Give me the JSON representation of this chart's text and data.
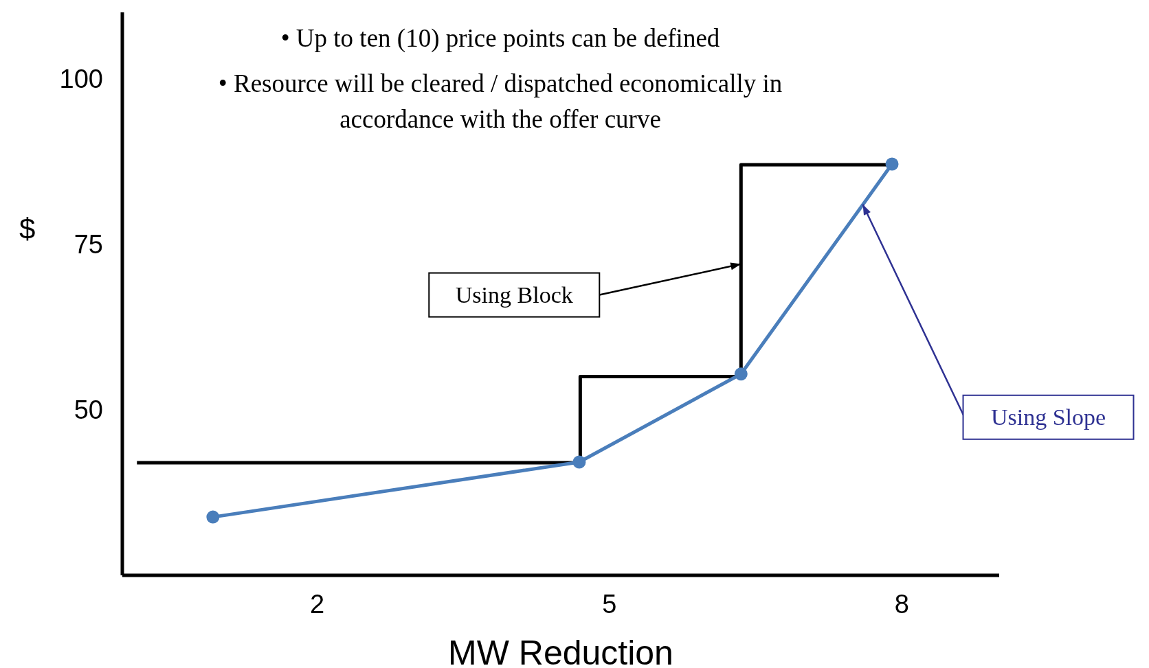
{
  "chart_data": {
    "type": "line",
    "xlabel": "MW Reduction",
    "ylabel": "$",
    "xlim": [
      0,
      9
    ],
    "xticks": [
      2,
      5,
      8
    ],
    "ylim": [
      25,
      110
    ],
    "yticks": [
      50,
      75,
      100
    ],
    "series": [
      {
        "type": "step",
        "color": "#000000",
        "marker": "none",
        "x": [
          0.15,
          4.7,
          6.35,
          7.9
        ],
        "values": [
          42,
          55,
          87,
          87
        ]
      },
      {
        "color": "#4a7ebb",
        "marker": "circle",
        "x": [
          0.93,
          4.69,
          6.35,
          7.9
        ],
        "values": [
          33.8,
          42.1,
          55.4,
          87.1
        ]
      }
    ],
    "annotations": [
      "• Up to ten (10) price points can be defined",
      "• Resource will be cleared / dispatched economically in accordance with the offer curve",
      {
        "text": "Using Block",
        "x": 6.35,
        "y": 72
      },
      {
        "text": "Using Slope",
        "x": 7.6,
        "y": 81
      }
    ]
  }
}
